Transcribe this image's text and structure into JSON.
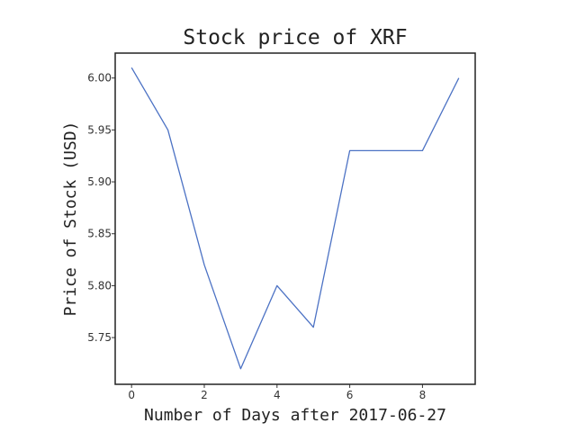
{
  "colors": {
    "series": "#4c72c4",
    "frame": "#222222"
  },
  "chart_data": {
    "type": "line",
    "title": "Stock price of XRF",
    "xlabel": "Number of Days after 2017-06-27",
    "ylabel": "Price of Stock (USD)",
    "x": [
      0,
      1,
      2,
      3,
      4,
      5,
      6,
      7,
      8,
      9
    ],
    "series": [
      {
        "values": [
          6.01,
          5.95,
          5.82,
          5.72,
          5.8,
          5.76,
          5.93,
          5.93,
          5.93,
          6.0
        ]
      }
    ],
    "xlim": [
      -0.45,
      9.45
    ],
    "ylim": [
      5.705,
      6.024
    ],
    "xticks": [
      0,
      2,
      4,
      6,
      8
    ],
    "yticks": [
      "5.75",
      "5.80",
      "5.85",
      "5.90",
      "5.95",
      "6.00"
    ],
    "grid": false,
    "legend": false
  }
}
